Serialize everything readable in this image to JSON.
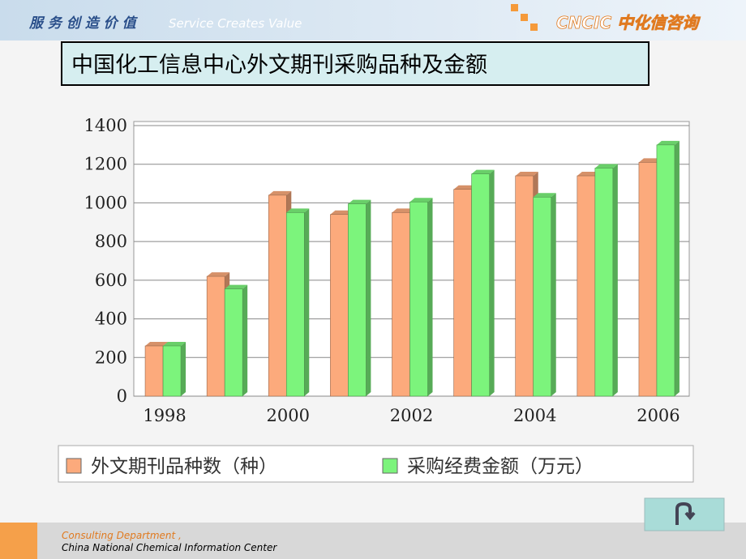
{
  "header": {
    "slogan": "服 务 创 造 价 值",
    "slogan_en": "Service Creates Value",
    "logo": "CNCIC 中化信咨询"
  },
  "chart_data": {
    "type": "bar",
    "title": "中国化工信息中心外文期刊采购品种及金额",
    "categories": [
      "1998",
      null,
      "2000",
      null,
      "2002",
      null,
      "2004",
      null,
      "2006"
    ],
    "series": [
      {
        "name": "外文期刊品种数（种）",
        "color": "#fcaa7c",
        "values": [
          260,
          620,
          1040,
          940,
          950,
          1070,
          1140,
          1140,
          1210
        ]
      },
      {
        "name": "采购经费金额（万元）",
        "color": "#7cf47c",
        "values": [
          260,
          555,
          950,
          995,
          1005,
          1150,
          1030,
          1180,
          1300
        ]
      }
    ],
    "ylim": [
      0,
      1400
    ],
    "yticks": [
      0,
      200,
      400,
      600,
      800,
      1000,
      1200,
      1400
    ],
    "grid": true
  },
  "footer": {
    "line1": "Consulting Department ,",
    "line2": "China National Chemical Information Center"
  }
}
